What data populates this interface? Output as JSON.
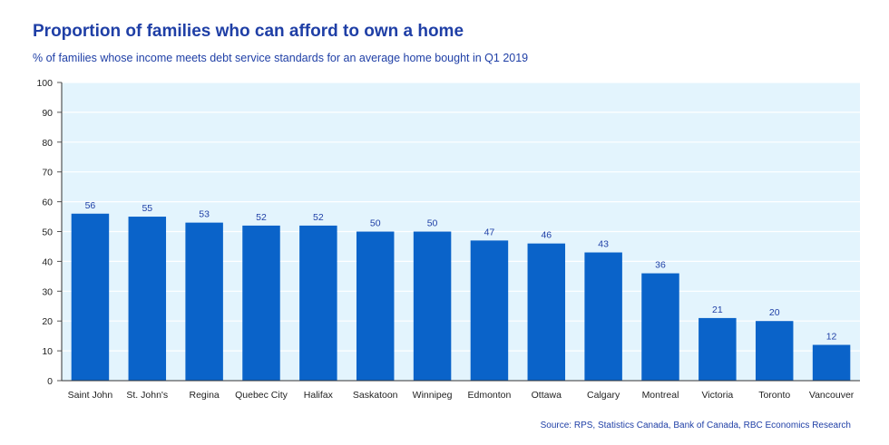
{
  "title": "Proportion of families who can afford to own a home",
  "subtitle": "% of families whose income meets debt service standards for an average home bought in Q1 2019",
  "source": "Source: RPS, Statistics Canada, Bank of Canada, RBC Economics Research",
  "colors": {
    "bar": "#0a63c9",
    "plot_background": "#e3f4fd",
    "title": "#1f3fa6"
  },
  "chart_data": {
    "type": "bar",
    "title": "Proportion of families who can afford to own a home",
    "subtitle": "% of families whose income meets debt service standards for an average home bought in Q1 2019",
    "categories": [
      "Saint John",
      "St. John's",
      "Regina",
      "Quebec City",
      "Halifax",
      "Saskatoon",
      "Winnipeg",
      "Edmonton",
      "Ottawa",
      "Calgary",
      "Montreal",
      "Victoria",
      "Toronto",
      "Vancouver"
    ],
    "values": [
      56,
      55,
      53,
      52,
      52,
      50,
      50,
      47,
      46,
      43,
      36,
      21,
      20,
      12
    ],
    "data_labels": [
      "56",
      "55",
      "53",
      "52",
      "52",
      "50",
      "50",
      "47",
      "46",
      "43",
      "36",
      "21",
      "20",
      "12"
    ],
    "ylim": [
      0,
      100
    ],
    "yticks": [
      0,
      10,
      20,
      30,
      40,
      50,
      60,
      70,
      80,
      90,
      100
    ],
    "ytick_labels": [
      "0",
      "10",
      "20",
      "30",
      "40",
      "50",
      "60",
      "70",
      "80",
      "90",
      "100"
    ],
    "grid": true,
    "legend": "none"
  }
}
